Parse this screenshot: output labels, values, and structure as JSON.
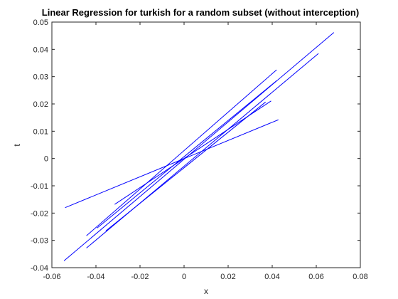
{
  "chart_data": {
    "type": "line",
    "title": "Linear Regression for turkish for a random subset (without interception)",
    "xlabel": "x",
    "ylabel": "t",
    "xlim": [
      -0.06,
      0.08
    ],
    "ylim": [
      -0.04,
      0.05
    ],
    "xticks": [
      "-0.06",
      "-0.04",
      "-0.02",
      "0",
      "0.02",
      "0.04",
      "0.06",
      "0.08"
    ],
    "yticks": [
      "-0.04",
      "-0.03",
      "-0.02",
      "-0.01",
      "0",
      "0.01",
      "0.02",
      "0.03",
      "0.04",
      "0.05"
    ],
    "grid": false,
    "line_color": "#0000ff",
    "series": [
      {
        "x": [
          -0.054,
          0.0428
        ],
        "y": [
          -0.018,
          0.0142
        ]
      },
      {
        "x": [
          -0.0545,
          0.068
        ],
        "y": [
          -0.0375,
          0.0462
        ]
      },
      {
        "x": [
          -0.0443,
          0.042
        ],
        "y": [
          -0.0283,
          0.0325
        ]
      },
      {
        "x": [
          -0.0443,
          0.061
        ],
        "y": [
          -0.0328,
          0.0385
        ]
      },
      {
        "x": [
          -0.0315,
          0.0395
        ],
        "y": [
          -0.0168,
          0.0211
        ]
      },
      {
        "x": [
          -0.0355,
          0.037
        ],
        "y": [
          -0.0265,
          0.0207
        ]
      },
      {
        "x": [
          -0.0395,
          0.042
        ],
        "y": [
          -0.0255,
          0.0285
        ]
      }
    ]
  }
}
